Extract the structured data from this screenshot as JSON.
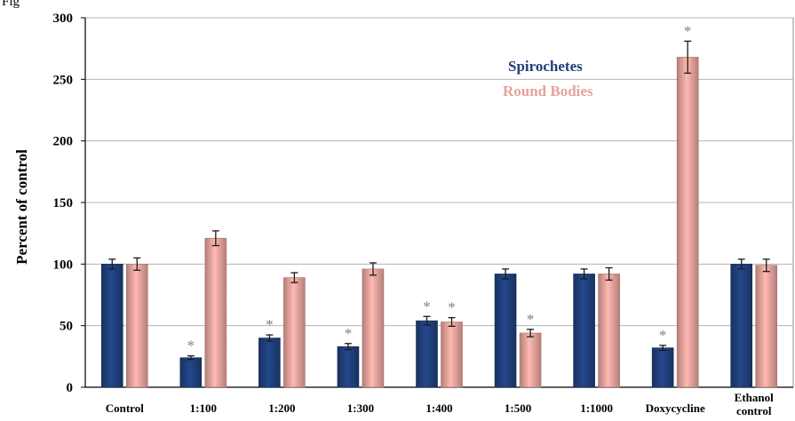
{
  "figure_label": "Fig",
  "chart_data": {
    "type": "bar",
    "ylabel": "Percent of control",
    "xlabel": "",
    "ylim": [
      0,
      300
    ],
    "yticks": [
      0,
      50,
      100,
      150,
      200,
      250,
      300
    ],
    "grid": true,
    "legend_position": "top-right",
    "categories": [
      [
        "Control"
      ],
      [
        "1:100"
      ],
      [
        "1:200"
      ],
      [
        "1:300"
      ],
      [
        "1:400"
      ],
      [
        "1:500"
      ],
      [
        "1:1000"
      ],
      [
        "Doxycycline"
      ],
      [
        "Ethanol",
        "control"
      ]
    ],
    "series": [
      {
        "name": "Spirochetes",
        "color": "#1f3f7a",
        "values": [
          100,
          24,
          40,
          33,
          54,
          92,
          92,
          32,
          100
        ],
        "errors": [
          4,
          1.5,
          2.5,
          2.5,
          3.5,
          4,
          4,
          2,
          4
        ],
        "significant": [
          false,
          true,
          true,
          true,
          true,
          false,
          false,
          true,
          false
        ]
      },
      {
        "name": "Round Bodies",
        "color": "#e8a19b",
        "values": [
          100,
          121,
          89,
          96,
          53,
          44,
          92,
          268,
          99
        ],
        "errors": [
          5,
          6,
          4,
          5,
          3.5,
          3,
          5,
          13,
          5
        ],
        "significant": [
          false,
          false,
          false,
          false,
          true,
          true,
          false,
          true,
          false
        ]
      }
    ],
    "significance_marker": "*"
  }
}
